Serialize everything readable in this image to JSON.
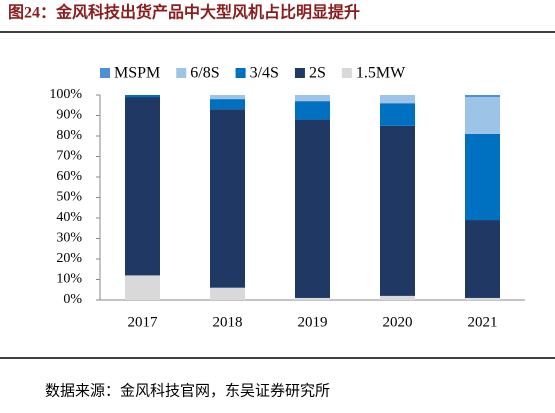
{
  "chart_data": {
    "type": "stacked_bar",
    "title": "图24：金风科技出货产品中大型风机占比明显提升",
    "source": "数据来源：金风科技官网，东吴证券研究所",
    "categories": [
      "2017",
      "2018",
      "2019",
      "2020",
      "2021"
    ],
    "series": [
      {
        "name": "MSPM",
        "color": "#4f8fd6",
        "values": [
          0,
          0,
          0,
          0,
          1
        ]
      },
      {
        "name": "6/8S",
        "color": "#9dc3e6",
        "values": [
          0,
          2,
          3,
          4,
          18
        ]
      },
      {
        "name": "3/4S",
        "color": "#0070c0",
        "values": [
          1,
          5,
          9,
          11,
          42
        ]
      },
      {
        "name": "2S",
        "color": "#1f3864",
        "values": [
          87,
          87,
          87,
          83,
          38
        ]
      },
      {
        "name": "1.5MW",
        "color": "#d9d9d9",
        "values": [
          12,
          6,
          1,
          2,
          1
        ]
      }
    ],
    "ylim": [
      0,
      100
    ],
    "yticks": [
      {
        "value": 0,
        "label": "0%"
      },
      {
        "value": 10,
        "label": "10%"
      },
      {
        "value": 20,
        "label": "20%"
      },
      {
        "value": 30,
        "label": "30%"
      },
      {
        "value": 40,
        "label": "40%"
      },
      {
        "value": 50,
        "label": "50%"
      },
      {
        "value": 60,
        "label": "60%"
      },
      {
        "value": 70,
        "label": "70%"
      },
      {
        "value": 80,
        "label": "80%"
      },
      {
        "value": 90,
        "label": "90%"
      },
      {
        "value": 100,
        "label": "100%"
      }
    ],
    "legend": "top"
  }
}
